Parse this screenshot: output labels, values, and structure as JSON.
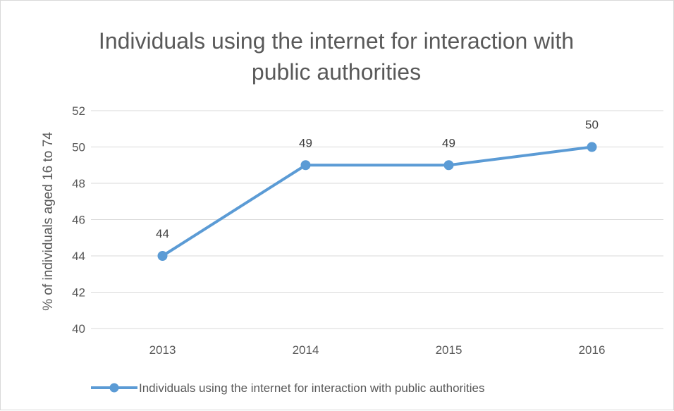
{
  "chart_data": {
    "type": "line",
    "title": "Individuals using the internet for interaction with public authorities",
    "title_lines": [
      "Individuals using the internet for interaction with",
      "public authorities"
    ],
    "xlabel": "",
    "ylabel": "% of individuals aged 16 to 74",
    "categories": [
      "2013",
      "2014",
      "2015",
      "2016"
    ],
    "series": [
      {
        "name": "Individuals using the internet for interaction with public authorities",
        "values": [
          44,
          49,
          49,
          50
        ],
        "data_labels": [
          "44",
          "49",
          "49",
          "50"
        ],
        "color": "#5b9bd5"
      }
    ],
    "ylim": [
      40,
      52
    ],
    "yticks": [
      "40",
      "42",
      "44",
      "46",
      "48",
      "50",
      "52"
    ],
    "grid": true,
    "gridline_color": "#d9d9d9",
    "legend_position": "bottom"
  }
}
